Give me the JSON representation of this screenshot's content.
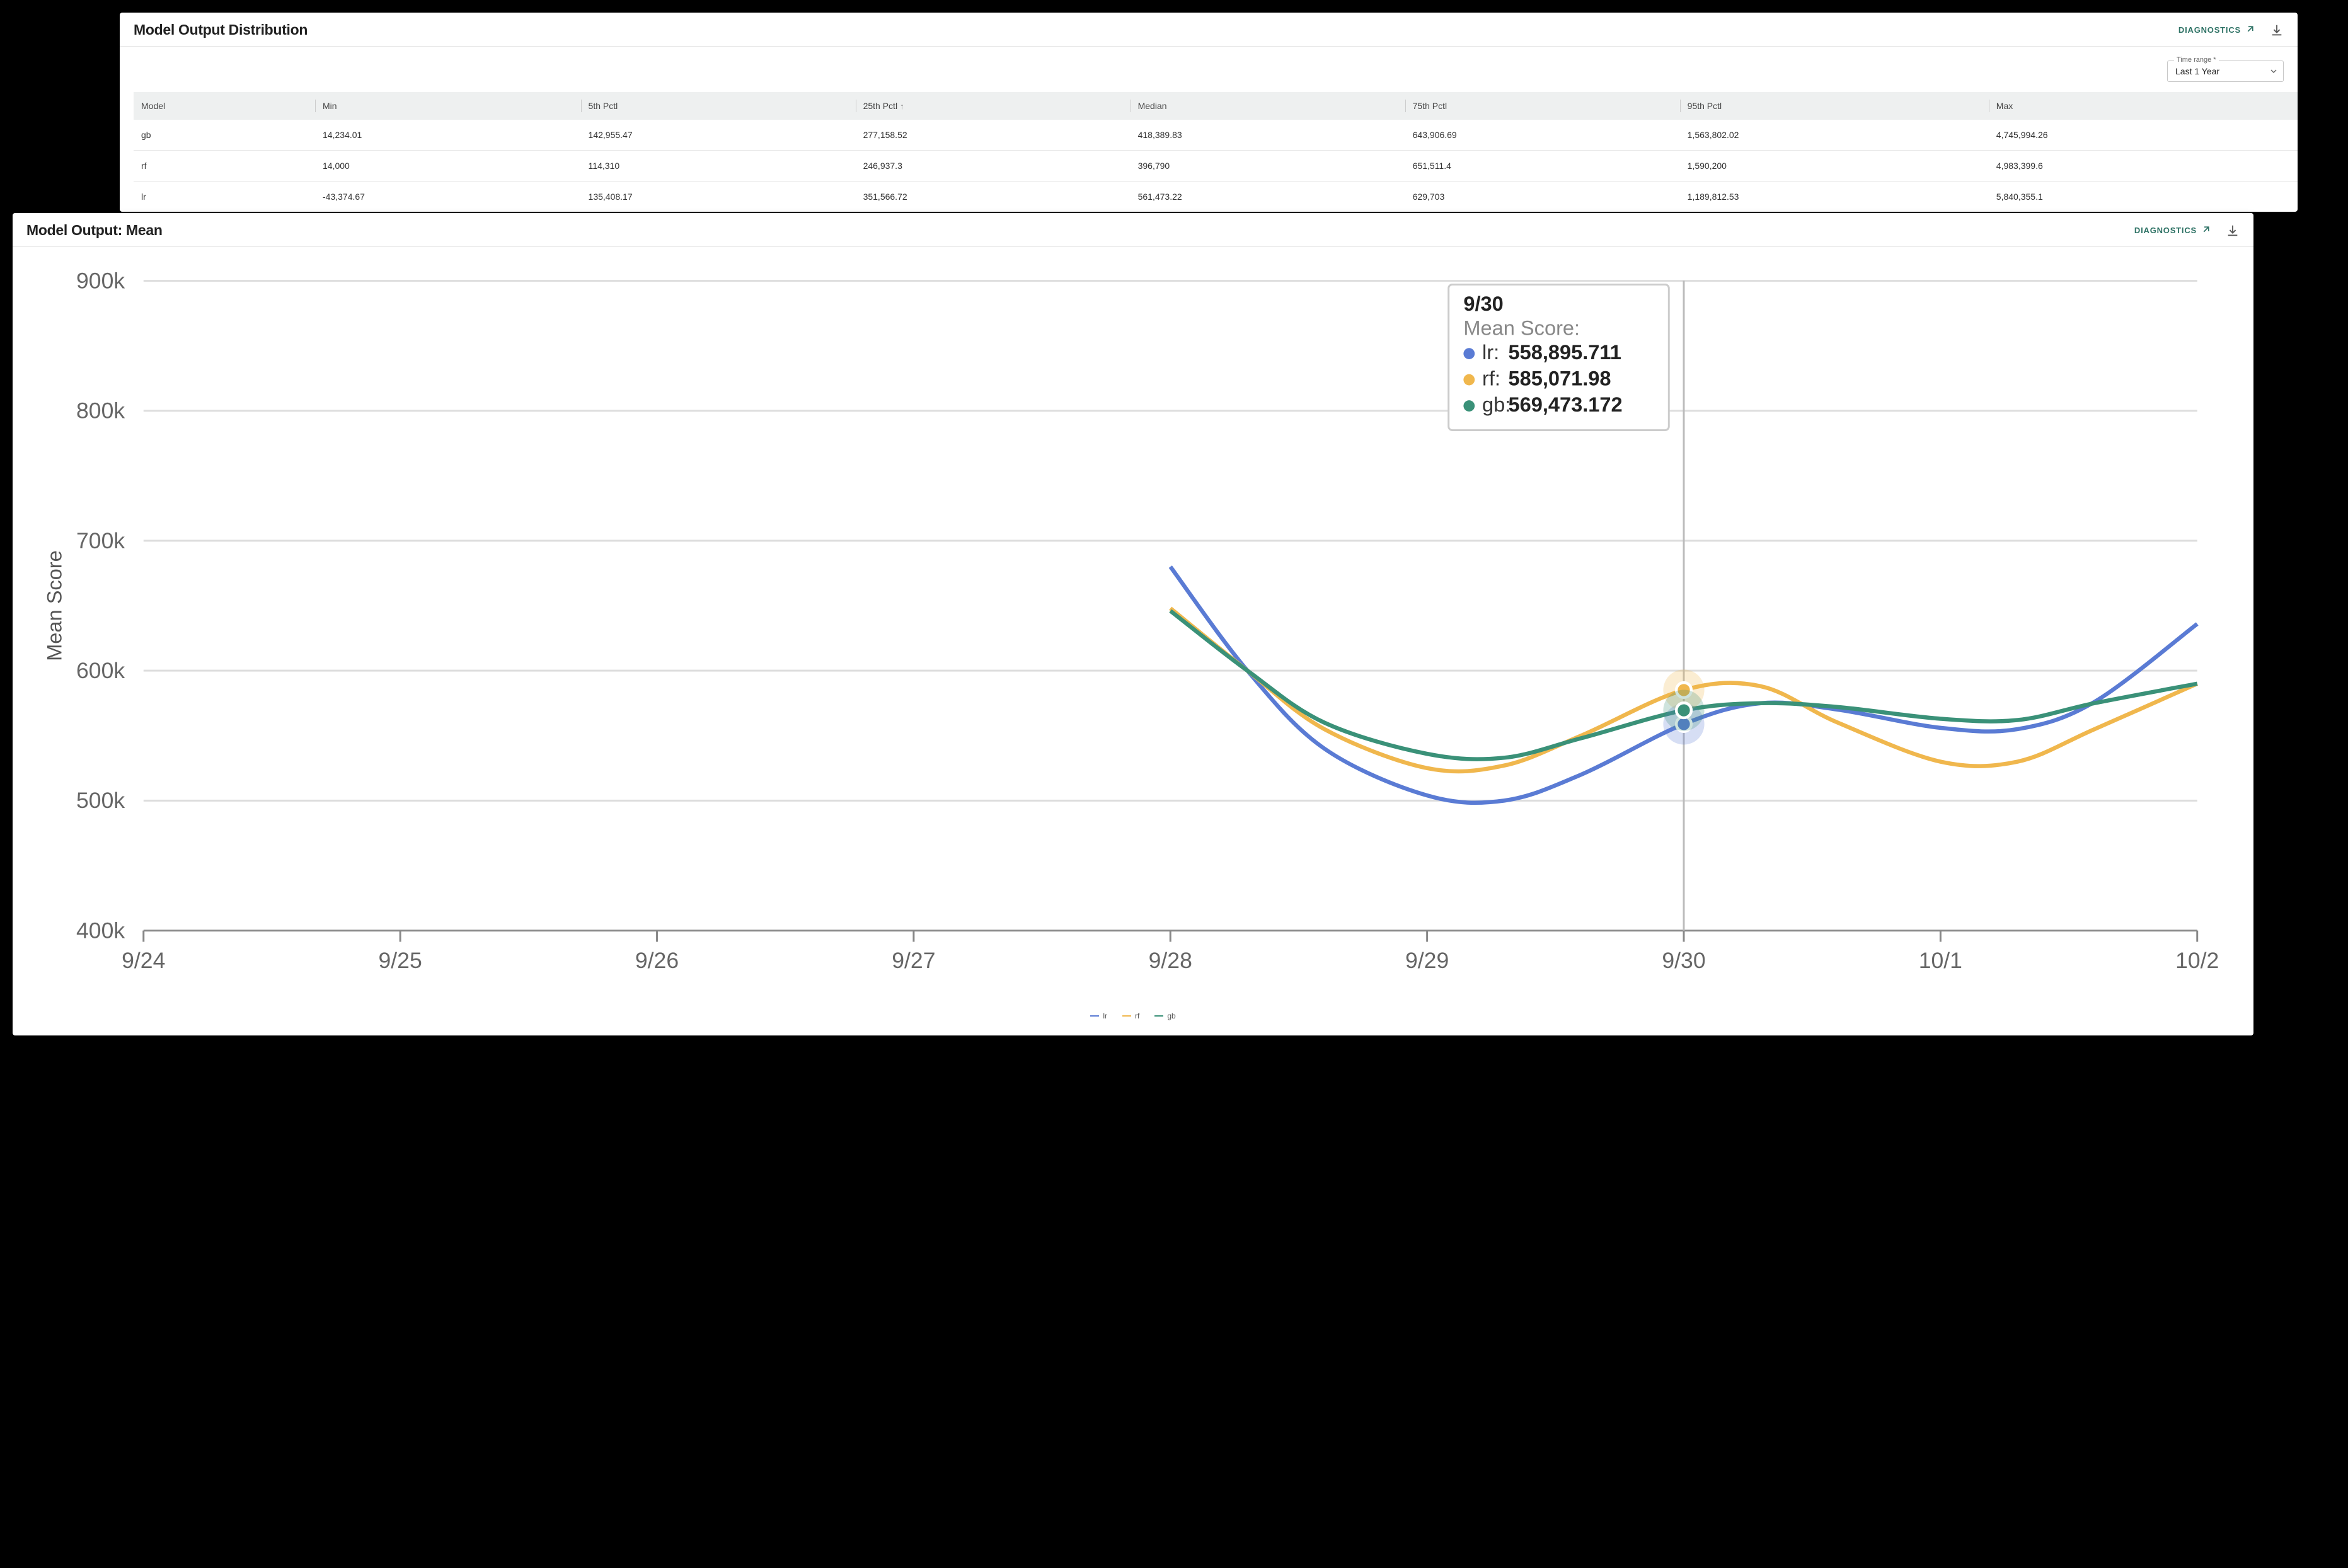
{
  "panel_distribution": {
    "title": "Model Output Distribution",
    "diagnostics_label": "DIAGNOSTICS",
    "time_range": {
      "label": "Time range *",
      "value": "Last 1 Year"
    },
    "table": {
      "columns": [
        "Model",
        "Min",
        "5th Pctl",
        "25th Pctl",
        "Median",
        "75th Pctl",
        "95th Pctl",
        "Max"
      ],
      "sort_column_index": 3,
      "sort_direction": "asc",
      "rows": [
        [
          "gb",
          "14,234.01",
          "142,955.47",
          "277,158.52",
          "418,389.83",
          "643,906.69",
          "1,563,802.02",
          "4,745,994.26"
        ],
        [
          "rf",
          "14,000",
          "114,310",
          "246,937.3",
          "396,790",
          "651,511.4",
          "1,590,200",
          "4,983,399.6"
        ],
        [
          "lr",
          "-43,374.67",
          "135,408.17",
          "351,566.72",
          "561,473.22",
          "629,703",
          "1,189,812.53",
          "5,840,355.1"
        ]
      ]
    }
  },
  "panel_mean": {
    "title": "Model Output: Mean",
    "diagnostics_label": "DIAGNOSTICS",
    "chart": {
      "type": "line",
      "y_axis_title": "Mean Score",
      "x_labels": [
        "9/24",
        "9/25",
        "9/26",
        "9/27",
        "9/28",
        "9/29",
        "9/30",
        "10/1",
        "10/2"
      ],
      "x_domain_index": [
        0,
        8
      ],
      "y_ticks": [
        400000,
        500000,
        600000,
        700000,
        800000,
        900000
      ],
      "y_tick_labels": [
        "400k",
        "500k",
        "600k",
        "700k",
        "800k",
        "900k"
      ],
      "ylim": [
        400000,
        900000
      ],
      "series": [
        {
          "key": "lr",
          "label": "lr",
          "color": "#5a7bd4",
          "points": [
            [
              4.0,
              680000
            ],
            [
              4.3,
              600000
            ],
            [
              4.6,
              540000
            ],
            [
              5.0,
              504000
            ],
            [
              5.3,
              500000
            ],
            [
              5.6,
              520000
            ],
            [
              6.0,
              558896
            ],
            [
              6.3,
              575000
            ],
            [
              6.6,
              570000
            ],
            [
              7.0,
              556000
            ],
            [
              7.3,
              555000
            ],
            [
              7.6,
              576000
            ],
            [
              8.0,
              636000
            ]
          ]
        },
        {
          "key": "rf",
          "label": "rf",
          "color": "#f0b74d",
          "points": [
            [
              4.0,
              648000
            ],
            [
              4.3,
              600000
            ],
            [
              4.6,
              555000
            ],
            [
              5.0,
              525000
            ],
            [
              5.3,
              527000
            ],
            [
              5.6,
              550000
            ],
            [
              6.0,
              585072
            ],
            [
              6.3,
              588000
            ],
            [
              6.6,
              560000
            ],
            [
              7.0,
              530000
            ],
            [
              7.3,
              530000
            ],
            [
              7.6,
              555000
            ],
            [
              8.0,
              590000
            ]
          ]
        },
        {
          "key": "gb",
          "label": "gb",
          "color": "#3a9178",
          "points": [
            [
              4.0,
              646000
            ],
            [
              4.3,
              600000
            ],
            [
              4.6,
              560000
            ],
            [
              5.0,
              536000
            ],
            [
              5.3,
              533000
            ],
            [
              5.6,
              548000
            ],
            [
              6.0,
              569473
            ],
            [
              6.3,
              575000
            ],
            [
              6.6,
              572000
            ],
            [
              7.0,
              563000
            ],
            [
              7.3,
              562000
            ],
            [
              7.6,
              575000
            ],
            [
              8.0,
              590000
            ]
          ]
        }
      ],
      "hover_x_index": 6,
      "tooltip": {
        "title": "9/30",
        "subtitle": "Mean Score:",
        "rows": [
          {
            "key": "lr",
            "label": "lr",
            "value": "558,895.711",
            "color": "#5a7bd4"
          },
          {
            "key": "rf",
            "label": "rf",
            "value": "585,071.98",
            "color": "#f0b74d"
          },
          {
            "key": "gb",
            "label": "gb",
            "value": "569,473.172",
            "color": "#3a9178"
          }
        ]
      },
      "grid_color": "#dddddd",
      "axis_color": "#888888",
      "background_color": "#ffffff",
      "line_width": 2.2,
      "legend_position": "bottom-center"
    }
  }
}
